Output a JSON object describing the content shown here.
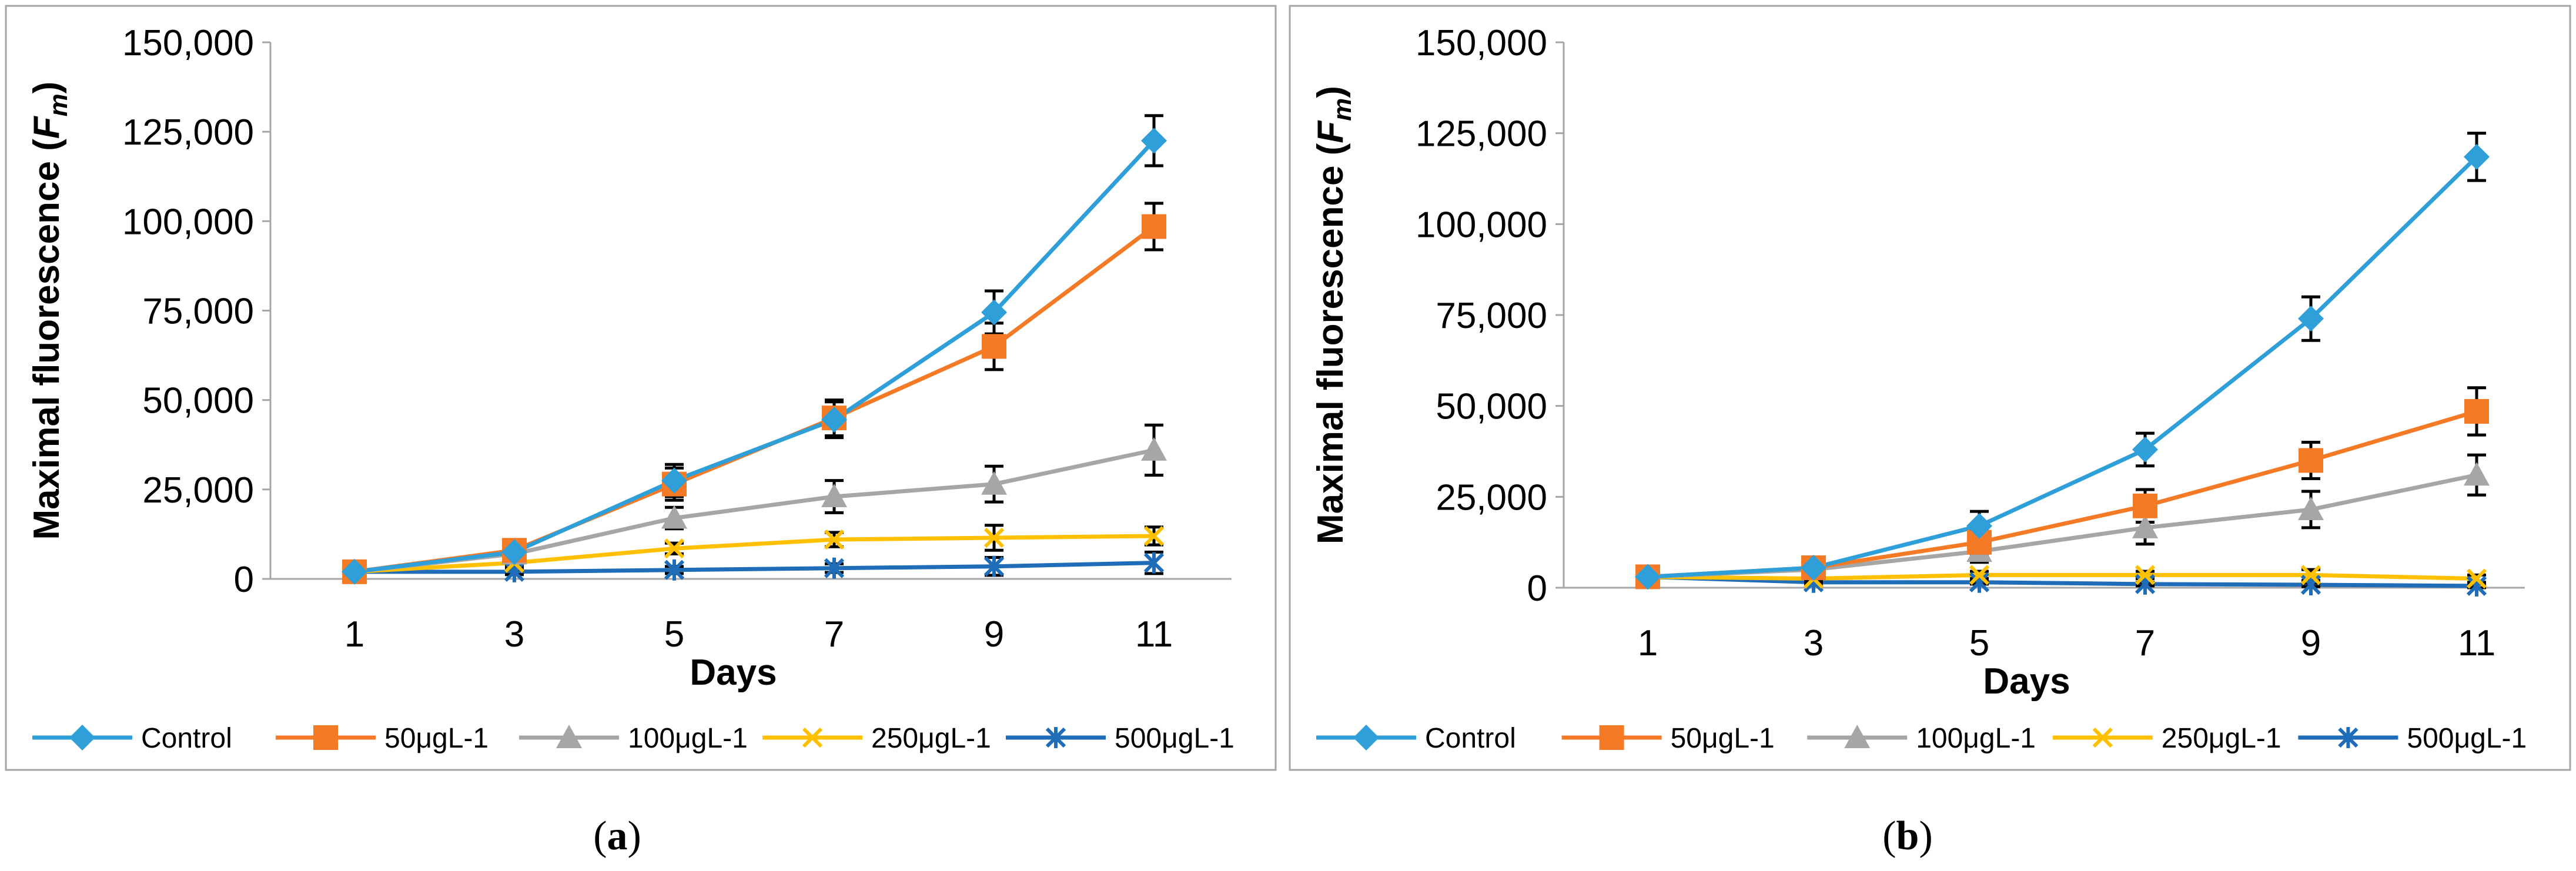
{
  "colors": {
    "Control": "#2E9FD8",
    "50μgL-1": "#F47A25",
    "100μgL-1": "#A6A6A6",
    "250μgL-1": "#FFC000",
    "500μgL-1": "#1F6CB8",
    "error_bar": "#000000",
    "frame": "#a6a6a6"
  },
  "chart_data": [
    {
      "type": "line",
      "panel_label_prefix": "(",
      "panel_label_letter": "a",
      "panel_label_suffix": ")",
      "xlabel": "Days",
      "ylabel": "Maximal fluorescence (",
      "ylabel_var": "F",
      "ylabel_sub": "m",
      "ylabel_close": ")",
      "x": [
        1,
        3,
        5,
        7,
        9,
        11
      ],
      "x_tick_labels": [
        "1",
        "3",
        "5",
        "7",
        "9",
        "11"
      ],
      "ylim": [
        0,
        150000
      ],
      "y_ticks": [
        0,
        25000,
        50000,
        75000,
        100000,
        125000,
        150000
      ],
      "y_tick_labels": [
        "0",
        "25,000",
        "50,000",
        "75,000",
        "100,000",
        "125,000",
        "150,000"
      ],
      "legend_position": "bottom",
      "grid": false,
      "series": [
        {
          "name": "Control",
          "marker": "diamond",
          "values": [
            2000,
            7500,
            27500,
            44500,
            74500,
            122500
          ],
          "errors": [
            800,
            1500,
            4500,
            5000,
            6000,
            7000
          ]
        },
        {
          "name": "50μgL-1",
          "marker": "square",
          "values": [
            2000,
            8000,
            26500,
            45000,
            65000,
            98500
          ],
          "errors": [
            800,
            1500,
            4500,
            5000,
            6500,
            6500
          ]
        },
        {
          "name": "100μgL-1",
          "marker": "triangle",
          "values": [
            2000,
            7000,
            17000,
            23000,
            26500,
            36000
          ],
          "errors": [
            800,
            1500,
            3000,
            4500,
            5000,
            7000
          ]
        },
        {
          "name": "250μgL-1",
          "marker": "x",
          "values": [
            2000,
            4500,
            8500,
            11000,
            11500,
            12000
          ],
          "errors": [
            800,
            1000,
            1500,
            2000,
            3500,
            2500
          ]
        },
        {
          "name": "500μgL-1",
          "marker": "star",
          "values": [
            2000,
            2000,
            2500,
            3000,
            3500,
            4500
          ],
          "errors": [
            800,
            800,
            1000,
            1200,
            2500,
            3000
          ]
        }
      ]
    },
    {
      "type": "line",
      "panel_label_prefix": "(",
      "panel_label_letter": "b",
      "panel_label_suffix": ")",
      "xlabel": "Days",
      "ylabel": "Maximal fluorescence (",
      "ylabel_var": "F",
      "ylabel_sub": "m",
      "ylabel_close": ")",
      "x": [
        1,
        3,
        5,
        7,
        9,
        11
      ],
      "x_tick_labels": [
        "1",
        "3",
        "5",
        "7",
        "9",
        "11"
      ],
      "ylim": [
        0,
        150000
      ],
      "y_ticks": [
        0,
        25000,
        50000,
        75000,
        100000,
        125000,
        150000
      ],
      "y_tick_labels": [
        "0",
        "25,000",
        "50,000",
        "75,000",
        "100,000",
        "125,000",
        "150,000"
      ],
      "legend_position": "bottom",
      "grid": false,
      "series": [
        {
          "name": "Control",
          "marker": "diamond",
          "values": [
            3000,
            5500,
            17000,
            38000,
            74000,
            118500
          ],
          "errors": [
            1000,
            1500,
            4000,
            4500,
            6000,
            6500
          ]
        },
        {
          "name": "50μgL-1",
          "marker": "square",
          "values": [
            3000,
            5500,
            12500,
            22500,
            35000,
            48500
          ],
          "errors": [
            1000,
            1500,
            3500,
            4500,
            5000,
            6500
          ]
        },
        {
          "name": "100μgL-1",
          "marker": "triangle",
          "values": [
            3000,
            5000,
            10000,
            16500,
            21500,
            31000
          ],
          "errors": [
            1000,
            1500,
            3000,
            4500,
            5000,
            5500
          ]
        },
        {
          "name": "250μgL-1",
          "marker": "x",
          "values": [
            3000,
            2500,
            3500,
            3500,
            3500,
            2500
          ],
          "errors": [
            1000,
            1000,
            1000,
            1000,
            1500,
            1000
          ]
        },
        {
          "name": "500μgL-1",
          "marker": "star",
          "values": [
            3000,
            1500,
            1500,
            1000,
            800,
            500
          ],
          "errors": [
            800,
            500,
            500,
            500,
            500,
            500
          ]
        }
      ]
    }
  ]
}
